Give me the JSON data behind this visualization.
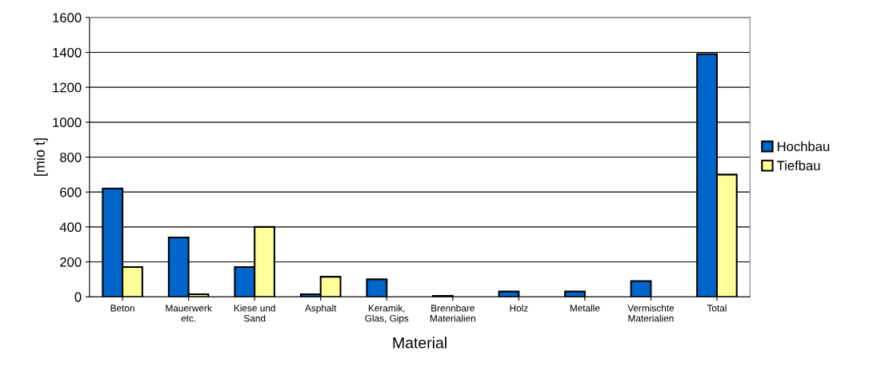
{
  "chart_data": {
    "type": "bar",
    "xlabel": "Material",
    "ylabel": "[mio t]",
    "categories": [
      "Beton",
      "Mauerwerk\netc.",
      "Kiese und\nSand",
      "Asphalt",
      "Keramik,\nGlas, Gips",
      "Brennbare\nMaterialien",
      "Holz",
      "Metalle",
      "Vermischte\nMaterialien",
      "Total"
    ],
    "series": [
      {
        "name": "Hochbau",
        "color": "#0066cc",
        "values": [
          620,
          340,
          170,
          15,
          100,
          5,
          30,
          30,
          90,
          1390
        ]
      },
      {
        "name": "Tiefbau",
        "color": "#ffff99",
        "values": [
          170,
          15,
          400,
          115,
          null,
          null,
          null,
          null,
          null,
          700
        ]
      }
    ],
    "ylim": [
      0,
      1600
    ],
    "yticks": [
      0,
      200,
      400,
      600,
      800,
      1000,
      1200,
      1400,
      1600
    ],
    "grid": "y",
    "legend": "right"
  }
}
